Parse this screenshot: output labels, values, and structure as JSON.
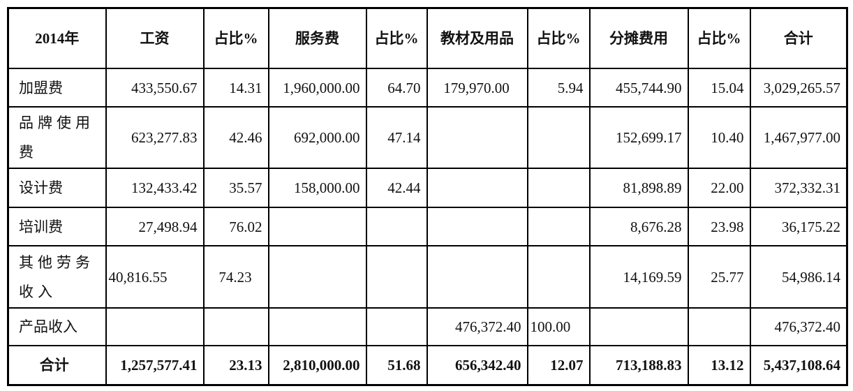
{
  "table": {
    "headers": [
      "2014年",
      "工资",
      "占比%",
      "服务费",
      "占比%",
      "教材及用品",
      "占比%",
      "分摊费用",
      "占比%",
      "合计"
    ],
    "rows": [
      {
        "label": "加盟费",
        "cells": [
          "433,550.67",
          "14.31",
          "1,960,000.00",
          "64.70",
          "179,970.00",
          "5.94",
          "455,744.90",
          "15.04",
          "3,029,265.57"
        ]
      },
      {
        "label": "品牌使用费",
        "cells": [
          "623,277.83",
          "42.46",
          "692,000.00",
          "47.14",
          "",
          "",
          "152,699.17",
          "10.40",
          "1,467,977.00"
        ]
      },
      {
        "label": "设计费",
        "cells": [
          "132,433.42",
          "35.57",
          "158,000.00",
          "42.44",
          "",
          "",
          "81,898.89",
          "22.00",
          "372,332.31"
        ]
      },
      {
        "label": "培训费",
        "cells": [
          "27,498.94",
          "76.02",
          "",
          "",
          "",
          "",
          "8,676.28",
          "23.98",
          "36,175.22"
        ]
      },
      {
        "label": "其他劳务收入",
        "cells": [
          "40,816.55",
          "74.23",
          "",
          "",
          "",
          "",
          "14,169.59",
          "25.77",
          "54,986.14"
        ]
      },
      {
        "label": "产品收入",
        "cells": [
          "",
          "",
          "",
          "",
          "476,372.40",
          "100.00",
          "",
          "",
          "476,372.40"
        ]
      }
    ],
    "total": {
      "label": "合计",
      "cells": [
        "1,257,577.41",
        "23.13",
        "2,810,000.00",
        "51.68",
        "656,342.40",
        "12.07",
        "713,188.83",
        "13.12",
        "5,437,108.64"
      ]
    }
  }
}
